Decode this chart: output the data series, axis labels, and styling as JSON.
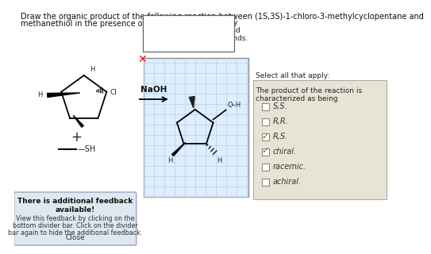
{
  "title_line1": "Draw the organic product of the following reaction between (1S,3S)-1-chloro-3-methylcyclopentane and",
  "title_line2": "methanethiol in the presence of sodium hydroxide.",
  "bg_color": "#ffffff",
  "grid_box_color": "#ddeeff",
  "grid_line_color": "#b8cfe0",
  "select_box_color": "#e8e4d5",
  "feedback_box_color": "#dde8f0",
  "naoh_text": "NaOH",
  "checkbox_items": [
    "S,S.",
    "R,R.",
    "R,S.",
    "chiral.",
    "racemic.",
    "achiral."
  ],
  "checked_items": [
    2,
    3
  ],
  "select_title1": "Select all that apply:",
  "select_title2": "The product of the reaction is",
  "select_title3": "characterized as being",
  "show_hint1": "Show any H’s on chirality",
  "show_hint2": "centers, if applicable, and",
  "show_hint3": "use wedge-and-dash bonds.",
  "feedback_title": "There is additional feedback",
  "feedback_title2": "available!",
  "feedback_body1": "View this feedback by clicking on the",
  "feedback_body2": "bottom divider bar. Click on the divider",
  "feedback_body3": "bar again to hide the additional feedback.",
  "close_text": "Close",
  "title_fontsize": 7.0,
  "hint_fontsize": 6.5,
  "select_fontsize": 6.5,
  "item_fontsize": 7.0,
  "feedback_fontsize": 6.5
}
